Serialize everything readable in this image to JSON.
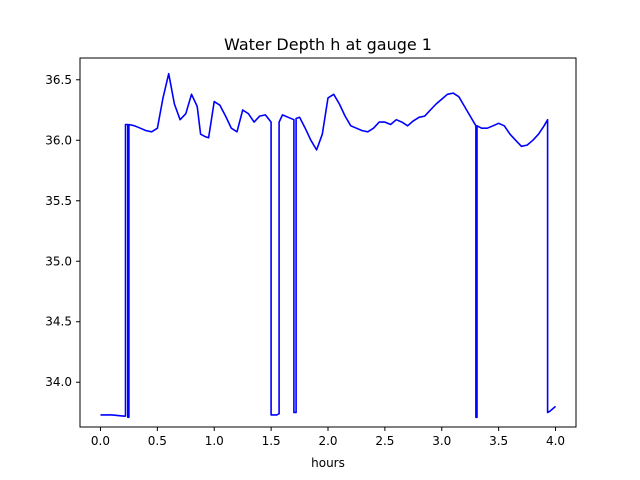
{
  "chart_data": {
    "type": "line",
    "title": "Water Depth h at gauge 1",
    "xlabel": "hours",
    "ylabel": "",
    "xlim": [
      -0.18,
      4.18
    ],
    "ylim": [
      33.63,
      36.68
    ],
    "xticks": [
      0.0,
      0.5,
      1.0,
      1.5,
      2.0,
      2.5,
      3.0,
      3.5,
      4.0
    ],
    "xtick_labels": [
      "0.0",
      "0.5",
      "1.0",
      "1.5",
      "2.0",
      "2.5",
      "3.0",
      "3.5",
      "4.0"
    ],
    "yticks": [
      34.0,
      34.5,
      35.0,
      35.5,
      36.0,
      36.5
    ],
    "ytick_labels": [
      "34.0",
      "34.5",
      "35.0",
      "35.5",
      "36.0",
      "36.5"
    ],
    "grid": false,
    "series": [
      {
        "color": "#0000ff",
        "x": [
          0.0,
          0.1,
          0.2,
          0.22,
          0.22,
          0.24,
          0.24,
          0.25,
          0.25,
          0.3,
          0.35,
          0.4,
          0.45,
          0.5,
          0.55,
          0.6,
          0.65,
          0.7,
          0.75,
          0.8,
          0.85,
          0.88,
          0.92,
          0.95,
          1.0,
          1.05,
          1.1,
          1.15,
          1.2,
          1.25,
          1.3,
          1.35,
          1.4,
          1.45,
          1.5,
          1.5,
          1.52,
          1.55,
          1.57,
          1.57,
          1.6,
          1.65,
          1.7,
          1.7,
          1.72,
          1.72,
          1.75,
          1.8,
          1.85,
          1.9,
          1.95,
          2.0,
          2.05,
          2.1,
          2.15,
          2.2,
          2.25,
          2.3,
          2.35,
          2.4,
          2.45,
          2.5,
          2.55,
          2.6,
          2.65,
          2.7,
          2.75,
          2.8,
          2.85,
          2.9,
          2.95,
          3.0,
          3.05,
          3.1,
          3.15,
          3.2,
          3.25,
          3.3,
          3.3,
          3.31,
          3.31,
          3.35,
          3.4,
          3.45,
          3.5,
          3.55,
          3.6,
          3.65,
          3.7,
          3.75,
          3.8,
          3.85,
          3.9,
          3.93,
          3.93,
          3.95,
          4.0
        ],
        "y": [
          33.73,
          33.73,
          33.72,
          33.72,
          36.13,
          36.13,
          33.71,
          33.71,
          36.13,
          36.12,
          36.1,
          36.08,
          36.07,
          36.1,
          36.35,
          36.55,
          36.3,
          36.17,
          36.22,
          36.38,
          36.28,
          36.05,
          36.03,
          36.02,
          36.32,
          36.29,
          36.2,
          36.1,
          36.07,
          36.25,
          36.22,
          36.15,
          36.2,
          36.21,
          36.15,
          33.73,
          33.73,
          33.73,
          33.74,
          36.15,
          36.21,
          36.19,
          36.17,
          33.75,
          33.75,
          36.18,
          36.19,
          36.1,
          36.0,
          35.92,
          36.05,
          36.35,
          36.38,
          36.3,
          36.2,
          36.12,
          36.1,
          36.08,
          36.07,
          36.1,
          36.15,
          36.15,
          36.13,
          36.17,
          36.15,
          36.12,
          36.16,
          36.19,
          36.2,
          36.25,
          36.3,
          36.34,
          36.38,
          36.39,
          36.36,
          36.28,
          36.2,
          36.12,
          33.71,
          33.71,
          36.12,
          36.1,
          36.1,
          36.12,
          36.14,
          36.12,
          36.05,
          36.0,
          35.95,
          35.96,
          36.0,
          36.05,
          36.12,
          36.17,
          33.75,
          33.76,
          33.8
        ]
      }
    ]
  }
}
